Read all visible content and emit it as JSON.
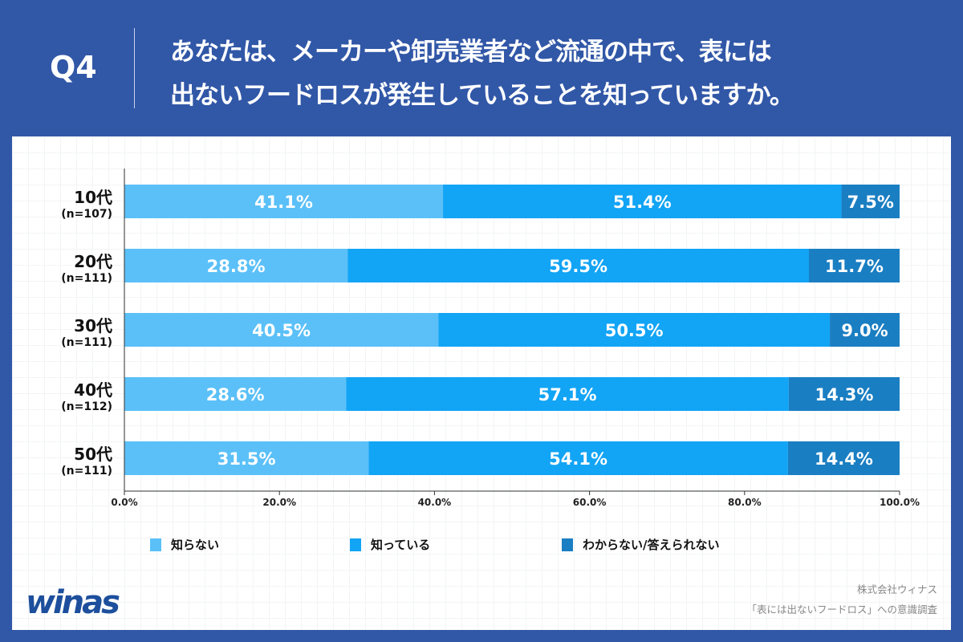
{
  "header": {
    "q": "Q4",
    "title_line1": "あなたは、メーカーや卸売業者など流通の中で、表には",
    "title_line2": "出ないフードロスが発生していることを知っていますか。"
  },
  "chart_data": {
    "type": "bar",
    "orientation": "horizontal",
    "stacked": true,
    "categories": [
      {
        "label": "10代",
        "n": "(n=107)"
      },
      {
        "label": "20代",
        "n": "(n=111)"
      },
      {
        "label": "30代",
        "n": "(n=111)"
      },
      {
        "label": "40代",
        "n": "(n=112)"
      },
      {
        "label": "50代",
        "n": "(n=111)"
      }
    ],
    "series": [
      {
        "name": "知らない",
        "color": "#5bc0f8",
        "values": [
          41.1,
          28.8,
          40.5,
          28.6,
          31.5
        ]
      },
      {
        "name": "知っている",
        "color": "#12a4f5",
        "values": [
          51.4,
          59.5,
          50.5,
          57.1,
          54.1
        ]
      },
      {
        "name": "わからない/答えられない",
        "color": "#1a7ec2",
        "values": [
          7.5,
          11.7,
          9.0,
          14.3,
          14.4
        ]
      }
    ],
    "xlim": [
      0,
      100
    ],
    "xticks": [
      "0.0%",
      "20.0%",
      "40.0%",
      "60.0%",
      "80.0%",
      "100.0%"
    ],
    "legend_position": "bottom"
  },
  "footer": {
    "logo": "winas",
    "source1": "株式会社ウィナス",
    "source2": "「表には出ないフードロス」への意識調査"
  }
}
